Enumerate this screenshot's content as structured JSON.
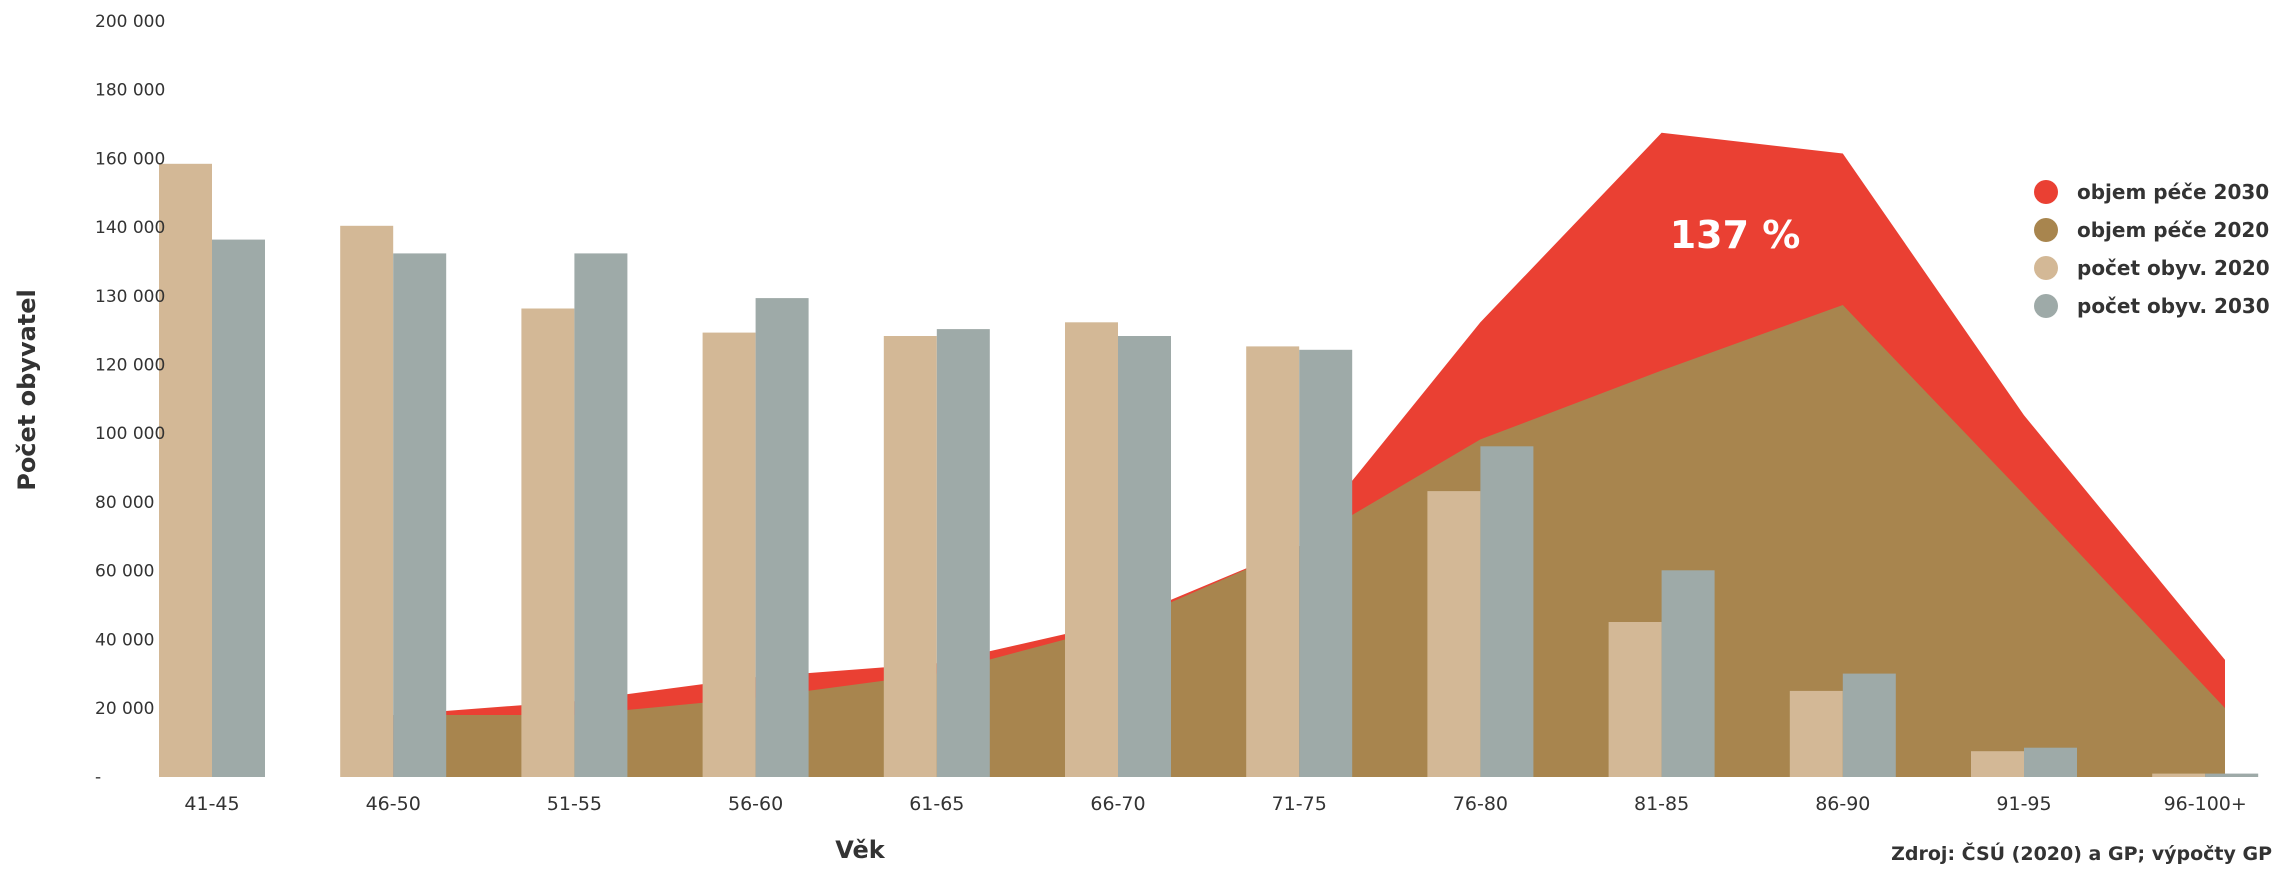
{
  "chart_data": {
    "type": "bar",
    "categories": [
      "41-45",
      "46-50",
      "51-55",
      "56-60",
      "61-65",
      "66-70",
      "71-75",
      "76-80",
      "81-85",
      "86-90",
      "91-95",
      "96-100+"
    ],
    "y_ticks": [
      "200 000",
      "180 000",
      "160 000",
      "140 000",
      "130 000",
      "120 000",
      "100 000",
      "80 000",
      "60 000",
      "40 000",
      "20 000",
      "-"
    ],
    "ylabel": "Počet obyvatel",
    "xlabel": "Věk",
    "ylim": [
      0,
      200000
    ],
    "series": [
      {
        "name": "počet obyv. 2020",
        "kind": "bar",
        "color": "#d3b896",
        "values": [
          178000,
          160000,
          136000,
          129000,
          128000,
          132000,
          125000,
          83000,
          45000,
          25000,
          7500,
          1000
        ]
      },
      {
        "name": "počet obyv. 2030",
        "kind": "bar",
        "color": "#9eaaa8",
        "values": [
          156000,
          152000,
          152000,
          139000,
          130000,
          128000,
          124000,
          96000,
          60000,
          30000,
          8500,
          1000
        ]
      },
      {
        "name": "objem péče 2030",
        "kind": "area",
        "color": "#ea4033",
        "values": [
          null,
          18000,
          22000,
          29000,
          33000,
          45000,
          67000,
          132000,
          187000,
          181000,
          105000,
          34000
        ]
      },
      {
        "name": "objem péče 2020",
        "kind": "area",
        "color": "#a8854e",
        "values": [
          null,
          18000,
          18000,
          23000,
          30000,
          44000,
          67000,
          98000,
          118000,
          137000,
          82000,
          20000
        ]
      }
    ],
    "legend_position": "right",
    "annotation": "137 %",
    "grid": false
  },
  "source": "Zdroj: ČSÚ (2020) a GP; výpočty GP"
}
